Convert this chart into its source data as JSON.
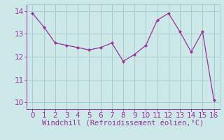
{
  "x": [
    0,
    1,
    2,
    3,
    4,
    5,
    6,
    7,
    8,
    9,
    10,
    11,
    12,
    13,
    14,
    15,
    16
  ],
  "y": [
    13.9,
    13.3,
    12.6,
    12.5,
    12.4,
    12.3,
    12.4,
    12.6,
    11.8,
    12.1,
    12.5,
    13.6,
    13.9,
    13.1,
    12.2,
    13.1,
    10.1
  ],
  "line_color": "#993399",
  "marker_color": "#993399",
  "bg_color": "#cce8e8",
  "grid_color": "#aacccc",
  "xlabel": "Windchill (Refroidissement éolien,°C)",
  "xlabel_color": "#993399",
  "xlim": [
    -0.5,
    16.5
  ],
  "ylim": [
    9.7,
    14.3
  ],
  "yticks": [
    10,
    11,
    12,
    13,
    14
  ],
  "xticks": [
    0,
    1,
    2,
    3,
    4,
    5,
    6,
    7,
    8,
    9,
    10,
    11,
    12,
    13,
    14,
    15,
    16
  ],
  "tick_color": "#993399",
  "font_size": 7.5
}
